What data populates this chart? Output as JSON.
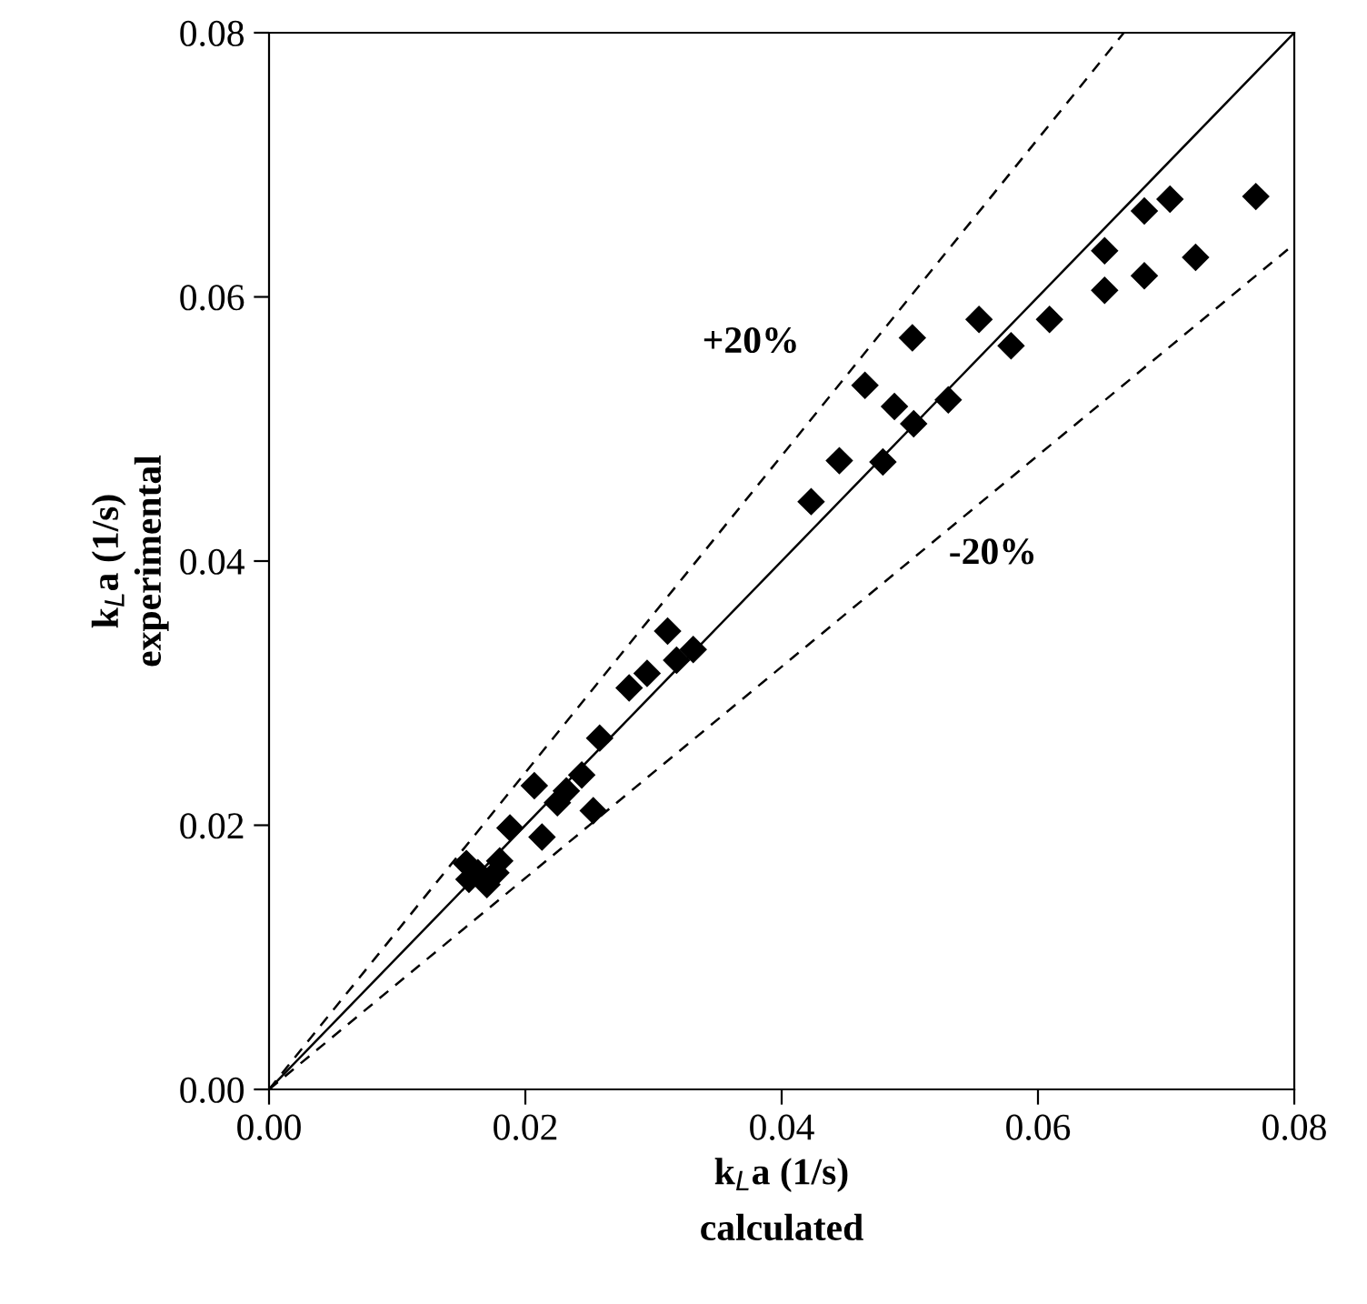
{
  "chart_data": {
    "type": "scatter",
    "xlabel": "k$_{L}$a (1/s)\ncalculated",
    "ylabel": "k$_{L}$a (1/s)\nexperimental",
    "xlim": [
      0,
      0.08
    ],
    "ylim": [
      0,
      0.08
    ],
    "xticks": [
      {
        "value": 0,
        "label": "0.00"
      },
      {
        "value": 0.02,
        "label": "0.02"
      },
      {
        "value": 0.04,
        "label": "0.04"
      },
      {
        "value": 0.06,
        "label": "0.06"
      },
      {
        "value": 0.08,
        "label": "0.08"
      }
    ],
    "yticks": [
      {
        "value": 0,
        "label": "0.00"
      },
      {
        "value": 0.02,
        "label": "0.02"
      },
      {
        "value": 0.04,
        "label": "0.04"
      },
      {
        "value": 0.06,
        "label": "0.06"
      },
      {
        "value": 0.08,
        "label": "0.08"
      }
    ],
    "grid": false,
    "legend": false,
    "series": [
      {
        "marker": "diamond",
        "color": "#000000",
        "x": [
          0.077,
          0.0703,
          0.0683,
          0.0652,
          0.0723,
          0.0683,
          0.0652,
          0.0609,
          0.0554,
          0.0579,
          0.0502,
          0.0465,
          0.0488,
          0.053,
          0.0503,
          0.0445,
          0.0479,
          0.0423,
          0.0311,
          0.0331,
          0.0318,
          0.0295,
          0.0281,
          0.0258,
          0.0244,
          0.0232,
          0.0207,
          0.022,
          0.0225,
          0.0253,
          0.0213,
          0.0188,
          0.018,
          0.0154,
          0.0156,
          0.0163,
          0.0177,
          0.017
        ],
        "values": [
          0.0676,
          0.0674,
          0.0665,
          0.0635,
          0.063,
          0.0616,
          0.0605,
          0.0583,
          0.0583,
          0.0563,
          0.0569,
          0.0533,
          0.0517,
          0.0522,
          0.0504,
          0.0476,
          0.0475,
          0.0445,
          0.0347,
          0.0333,
          0.0325,
          0.0315,
          0.0304,
          0.0266,
          0.0238,
          0.0226,
          0.023,
          null,
          0.0217,
          0.0211,
          0.0191,
          0.0198,
          0.0173,
          0.0171,
          0.0159,
          0.0164,
          0.0164,
          0.0155
        ]
      },
      {
        "type": "line",
        "color": "#000000",
        "line_style": "solid",
        "x": [
          0,
          0.08
        ],
        "values": [
          0,
          0.08
        ]
      },
      {
        "type": "line",
        "color": "#000000",
        "line_style": "dashed",
        "x": [
          0,
          0.0667
        ],
        "values": [
          0,
          0.08
        ]
      },
      {
        "type": "line",
        "color": "#000000",
        "line_style": "dashed",
        "x": [
          0,
          0.08
        ],
        "values": [
          0,
          0.064
        ]
      }
    ],
    "annotations": [
      "+20%",
      "-20%"
    ]
  }
}
